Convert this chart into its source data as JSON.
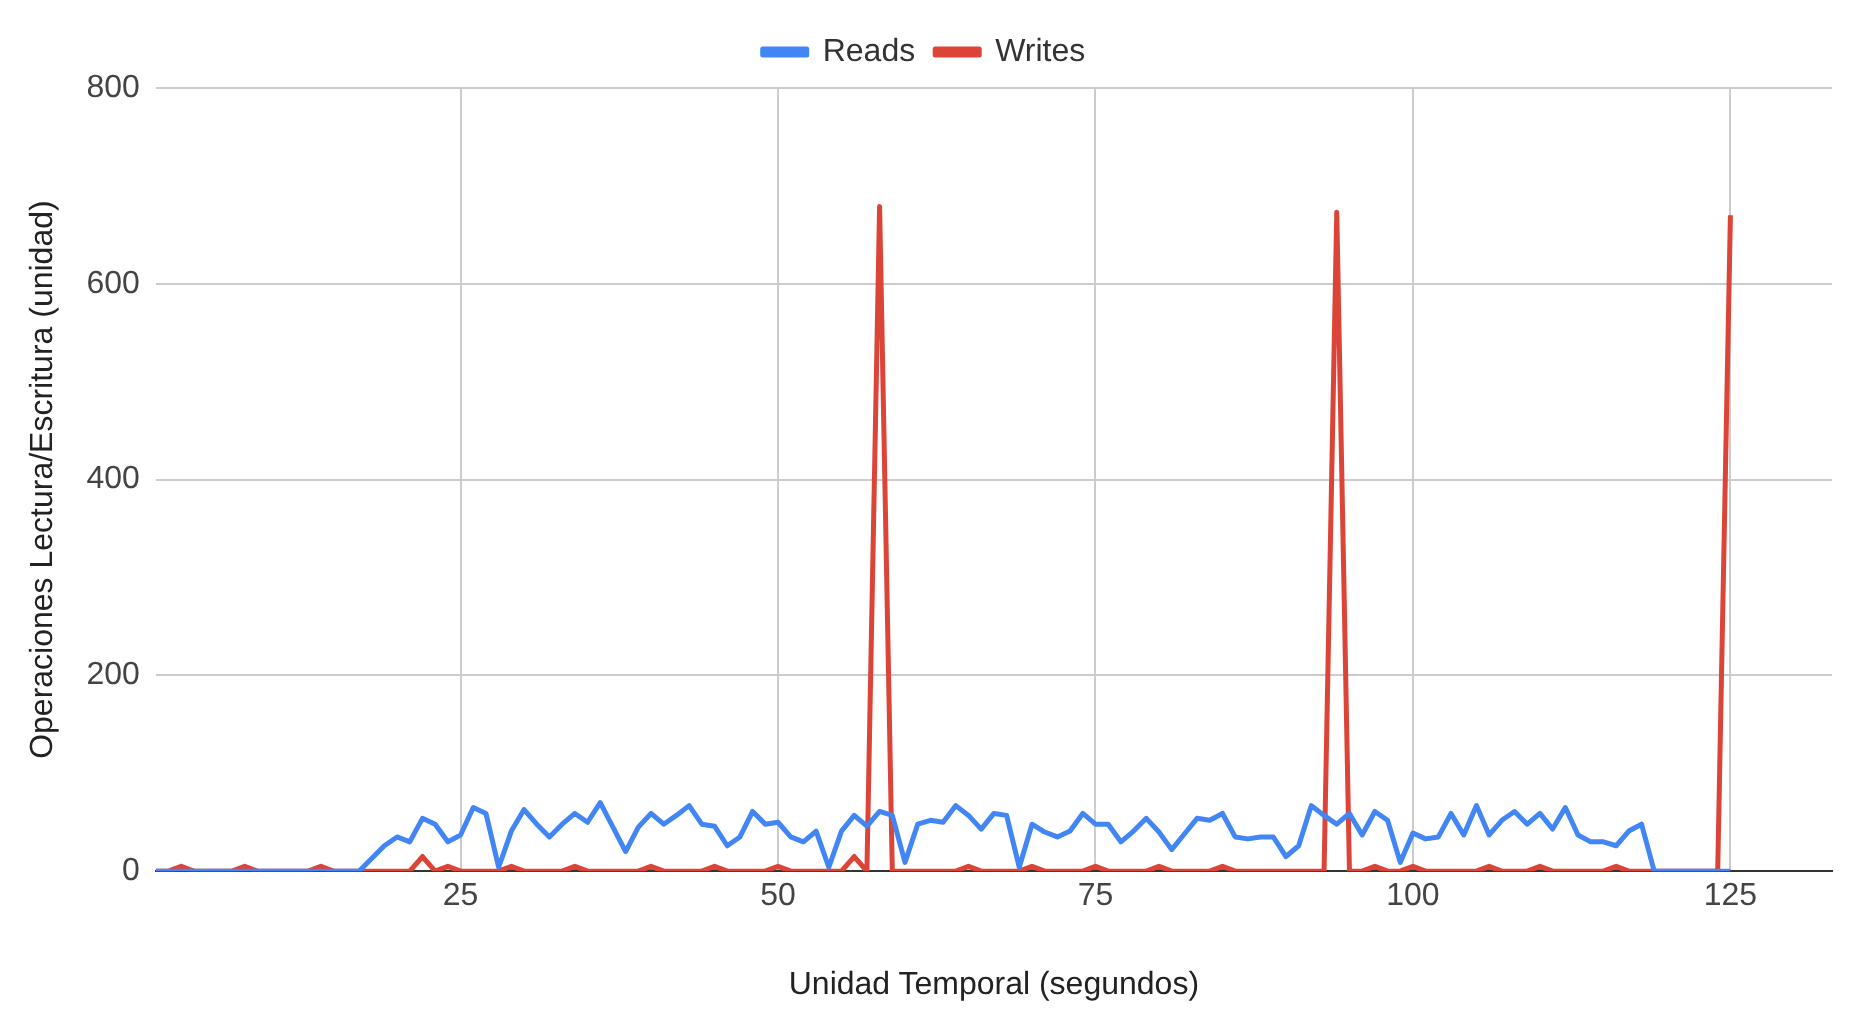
{
  "chart_data": {
    "type": "line",
    "xlabel": "Unidad Temporal (segundos)",
    "ylabel": "Operaciones Lectura/Escritura (unidad)",
    "x": [
      1,
      2,
      3,
      4,
      5,
      6,
      7,
      8,
      9,
      10,
      11,
      12,
      13,
      14,
      15,
      16,
      17,
      18,
      19,
      20,
      21,
      22,
      23,
      24,
      25,
      26,
      27,
      28,
      29,
      30,
      31,
      32,
      33,
      34,
      35,
      36,
      37,
      38,
      39,
      40,
      41,
      42,
      43,
      44,
      45,
      46,
      47,
      48,
      49,
      50,
      51,
      52,
      53,
      54,
      55,
      56,
      57,
      58,
      59,
      60,
      61,
      62,
      63,
      64,
      65,
      66,
      67,
      68,
      69,
      70,
      71,
      72,
      73,
      74,
      75,
      76,
      77,
      78,
      79,
      80,
      81,
      82,
      83,
      84,
      85,
      86,
      87,
      88,
      89,
      90,
      91,
      92,
      93,
      94,
      95,
      96,
      97,
      98,
      99,
      100,
      101,
      102,
      103,
      104,
      105,
      106,
      107,
      108,
      109,
      110,
      111,
      112,
      113,
      114,
      115,
      116,
      117,
      118,
      119,
      120,
      121,
      122,
      123,
      124,
      125
    ],
    "series": [
      {
        "name": "Reads",
        "color": "#4285f4",
        "values": [
          0,
          0,
          0,
          0,
          0,
          0,
          0,
          0,
          0,
          0,
          0,
          0,
          0,
          0,
          0,
          0,
          0,
          13,
          26,
          35,
          30,
          54,
          48,
          30,
          37,
          65,
          59,
          4,
          41,
          63,
          48,
          35,
          48,
          59,
          50,
          70,
          45,
          20,
          45,
          59,
          48,
          57,
          67,
          48,
          46,
          26,
          35,
          61,
          48,
          50,
          35,
          30,
          41,
          4,
          41,
          57,
          46,
          61,
          57,
          9,
          48,
          52,
          50,
          67,
          57,
          43,
          59,
          57,
          4,
          48,
          40,
          35,
          41,
          59,
          48,
          48,
          30,
          41,
          54,
          40,
          22,
          38,
          54,
          52,
          59,
          35,
          33,
          35,
          35,
          15,
          26,
          67,
          57,
          48,
          59,
          37,
          61,
          52,
          9,
          39,
          33,
          35,
          59,
          37,
          67,
          37,
          52,
          61,
          48,
          59,
          43,
          65,
          37,
          30,
          30,
          26,
          41,
          48,
          0,
          0,
          0,
          0,
          0,
          0,
          0
        ]
      },
      {
        "name": "Writes",
        "color": "#db4437",
        "values": [
          0,
          0,
          5,
          0,
          0,
          0,
          0,
          5,
          0,
          0,
          0,
          0,
          0,
          5,
          0,
          0,
          0,
          0,
          0,
          0,
          0,
          15,
          0,
          5,
          0,
          0,
          0,
          0,
          5,
          0,
          0,
          0,
          0,
          5,
          0,
          0,
          0,
          0,
          0,
          5,
          0,
          0,
          0,
          0,
          5,
          0,
          0,
          0,
          0,
          5,
          0,
          0,
          0,
          0,
          0,
          15,
          0,
          679,
          0,
          0,
          0,
          0,
          0,
          0,
          5,
          0,
          0,
          0,
          0,
          5,
          0,
          0,
          0,
          0,
          5,
          0,
          0,
          0,
          0,
          5,
          0,
          0,
          0,
          0,
          5,
          0,
          0,
          0,
          0,
          0,
          0,
          0,
          0,
          673,
          0,
          0,
          5,
          0,
          0,
          5,
          0,
          0,
          0,
          0,
          0,
          5,
          0,
          0,
          0,
          5,
          0,
          0,
          0,
          0,
          0,
          5,
          0,
          0,
          0,
          0,
          0,
          0,
          0,
          0,
          670
        ]
      }
    ],
    "xlim": [
      1,
      133
    ],
    "xticks": [
      25,
      50,
      75,
      100,
      125
    ],
    "ylim": [
      0,
      800
    ],
    "yticks": [
      0,
      200,
      400,
      600,
      800
    ],
    "grid": true,
    "legend": "top",
    "marker": "none",
    "line_style": "solid"
  }
}
